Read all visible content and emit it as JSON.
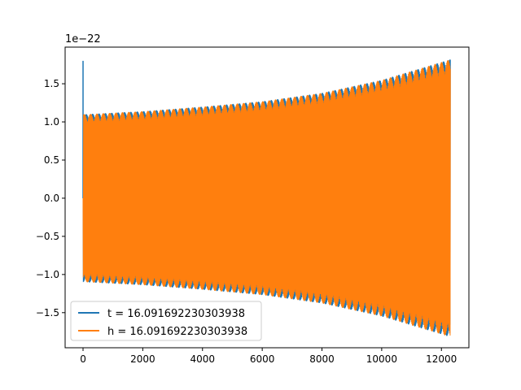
{
  "chart_data": {
    "type": "line",
    "title": "",
    "xlabel": "",
    "ylabel": "",
    "y_scale_label": "1e−22",
    "y_scale_factor": 1e-22,
    "xlim": [
      -600,
      12920
    ],
    "ylim": [
      -1.96,
      1.98
    ],
    "x_ticks": [
      0,
      2000,
      4000,
      6000,
      8000,
      10000,
      12000
    ],
    "x_tick_labels": [
      "0",
      "2000",
      "4000",
      "6000",
      "8000",
      "10000",
      "12000"
    ],
    "y_ticks": [
      -1.5,
      -1.0,
      -0.5,
      0.0,
      0.5,
      1.0,
      1.5
    ],
    "y_tick_labels": [
      "−1.5",
      "−1.0",
      "−0.5",
      "0.0",
      "0.5",
      "1.0",
      "1.5"
    ],
    "grid": false,
    "legend_position": "lower-left",
    "series": [
      {
        "name": "t = 16.09169223030393​8",
        "color": "#1f77b4",
        "x_range": [
          0,
          12300
        ],
        "initial_spike": 1.8,
        "envelope": [
          [
            0,
            1.1
          ],
          [
            2000,
            1.14
          ],
          [
            4000,
            1.2
          ],
          [
            6000,
            1.27
          ],
          [
            8000,
            1.38
          ],
          [
            10000,
            1.55
          ],
          [
            12300,
            1.82
          ]
        ],
        "style": "chirp"
      },
      {
        "name": "h = 16.09169223030393​8",
        "color": "#ff7f0e",
        "x_range": [
          0,
          12300
        ],
        "envelope": [
          [
            0,
            1.1
          ],
          [
            2000,
            1.14
          ],
          [
            4000,
            1.2
          ],
          [
            6000,
            1.27
          ],
          [
            8000,
            1.38
          ],
          [
            10000,
            1.55
          ],
          [
            12300,
            1.82
          ]
        ],
        "style": "chirp"
      }
    ]
  }
}
